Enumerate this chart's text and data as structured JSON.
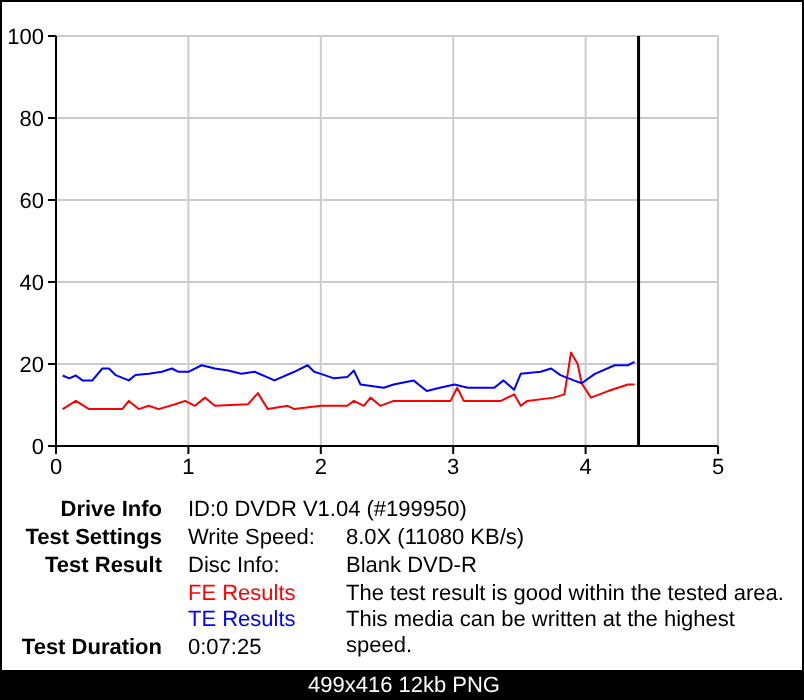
{
  "chart_data": {
    "type": "line",
    "x": [
      0.05,
      0.1,
      0.15,
      0.2,
      0.275,
      0.35,
      0.4,
      0.45,
      0.55,
      0.6,
      0.7,
      0.8,
      0.875,
      0.925,
      1.0,
      1.1,
      1.2,
      1.3,
      1.4,
      1.5,
      1.65,
      1.8,
      1.9,
      1.95,
      2.0,
      2.1,
      2.2,
      2.25,
      2.3,
      2.475,
      2.55,
      2.7,
      2.8,
      2.9,
      3.01,
      3.11,
      3.31,
      3.38,
      3.46,
      3.51,
      3.66,
      3.74,
      3.81,
      3.91,
      3.97,
      4.07,
      4.22,
      4.32,
      4.37
    ],
    "series": [
      {
        "name": "FE Results",
        "color": "#ff0000",
        "x": [
          0.05,
          0.15,
          0.25,
          0.5,
          0.55,
          0.625,
          0.7,
          0.775,
          0.9,
          0.975,
          1.05,
          1.125,
          1.2,
          1.45,
          1.525,
          1.6,
          1.75,
          1.8,
          2.0,
          2.2,
          2.25,
          2.325,
          2.375,
          2.45,
          2.55,
          2.98,
          3.03,
          3.08,
          3.36,
          3.46,
          3.51,
          3.56,
          3.76,
          3.84,
          3.89,
          3.94,
          3.97,
          4.04,
          4.17,
          4.32,
          4.37
        ],
        "values": [
          9,
          11,
          9,
          9,
          11,
          9,
          9.8,
          9,
          10.2,
          11,
          9.8,
          11.8,
          9.8,
          10.2,
          12.9,
          9,
          9.8,
          9,
          9.8,
          9.8,
          11,
          9.8,
          11.8,
          9.8,
          11,
          11,
          14.2,
          11,
          11,
          12.6,
          9.8,
          11,
          11.8,
          12.6,
          22.8,
          20,
          15.3,
          11.8,
          13.4,
          15,
          15
        ]
      },
      {
        "name": "TE Results",
        "color": "#0000ff",
        "values": [
          17.2,
          16.5,
          17.2,
          16,
          16,
          18.9,
          18.9,
          17.3,
          16,
          17.3,
          17.6,
          18.1,
          18.9,
          18.1,
          18.1,
          19.7,
          18.9,
          18.4,
          17.6,
          18.1,
          16,
          18.1,
          19.7,
          18.1,
          17.6,
          16.5,
          16.8,
          18.4,
          15,
          14.2,
          15,
          16,
          13.4,
          14.2,
          15,
          14.2,
          14.2,
          16,
          13.7,
          17.6,
          18.1,
          18.9,
          17.3,
          16,
          15.3,
          17.6,
          19.7,
          19.7,
          20.5
        ]
      }
    ],
    "xlim": [
      0,
      5
    ],
    "xticks": [
      0,
      1,
      2,
      3,
      4,
      5
    ],
    "ylim": [
      0,
      100
    ],
    "yticks": [
      0,
      20,
      40,
      60,
      80,
      100
    ],
    "grid": true,
    "legend": "bottom",
    "marker": "none",
    "line_style": "solid",
    "ref_lines": [
      {
        "axis": "x",
        "value": 4.4,
        "color": "#000000"
      }
    ],
    "annotations": [
      "Drive Info",
      "ID:0 DVDR V1.04 (#199950)",
      "Test Settings",
      "Write Speed:",
      "8.0X (11080 KB/s)",
      "Test Result",
      "Disc Info:",
      "Blank DVD-R",
      "The test result is good within the tested area. This media can be written at the highest speed.",
      "Test Duration",
      "0:07:25",
      "499x416 12kb PNG"
    ]
  }
}
